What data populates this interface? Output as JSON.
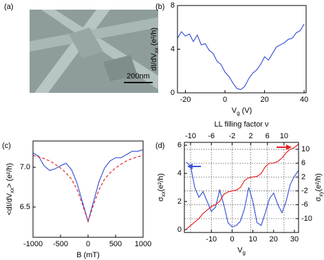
{
  "chart_data": [
    {
      "type": "image",
      "label": "(a)",
      "scale_bar": "200nm"
    },
    {
      "type": "line",
      "label": "(b)",
      "xlabel": [
        "V",
        "g",
        " (V)"
      ],
      "ylabel": [
        "dI/dV",
        "xx",
        " (e²/h)"
      ],
      "xlim": [
        -24,
        41
      ],
      "xticks": [
        -20,
        0,
        20,
        40
      ],
      "ylim": [
        0,
        8
      ],
      "yticks": [
        0,
        4,
        8
      ],
      "grid": false,
      "x": [
        -24,
        -22,
        -20,
        -18,
        -16,
        -14,
        -12,
        -10,
        -8,
        -6,
        -4,
        -2,
        0,
        2,
        4,
        6,
        8,
        10,
        12,
        14,
        16,
        18,
        20,
        22,
        24,
        26,
        28,
        30,
        32,
        34,
        36,
        38,
        40
      ],
      "series": [
        {
          "color": "#3a55d8",
          "values": [
            5.0,
            5.6,
            5.2,
            5.4,
            4.7,
            5.3,
            4.4,
            4.5,
            3.9,
            3.6,
            2.9,
            2.6,
            1.9,
            1.5,
            0.9,
            0.4,
            0.3,
            0.6,
            1.3,
            1.8,
            2.1,
            2.6,
            3.3,
            3.0,
            3.6,
            4.2,
            4.4,
            4.6,
            4.9,
            5.0,
            5.5,
            5.7,
            6.3
          ]
        }
      ]
    },
    {
      "type": "line",
      "label": "(c)",
      "xlabel": [
        "B (mT)"
      ],
      "ylabel": [
        "<dI/dV",
        "xx",
        "> (e²/h)"
      ],
      "xlim": [
        -1000,
        1000
      ],
      "xticks": [
        -1000,
        -500,
        0,
        500,
        1000
      ],
      "ylim": [
        6.12,
        7.33
      ],
      "yticks": [
        6.5,
        {
          "value": 7,
          "label": "7.0"
        }
      ],
      "grid": false,
      "x": [
        -1000,
        -900,
        -800,
        -700,
        -600,
        -500,
        -400,
        -300,
        -200,
        -100,
        0,
        100,
        200,
        300,
        400,
        500,
        600,
        700,
        800,
        900,
        1000
      ],
      "series": [
        {
          "color": "#3a55d8",
          "style": "solid",
          "values": [
            7.18,
            7.14,
            7.02,
            6.96,
            6.98,
            7.02,
            7.05,
            6.97,
            6.8,
            6.56,
            6.32,
            6.57,
            6.82,
            6.99,
            7.08,
            7.12,
            7.12,
            7.16,
            7.2,
            7.2,
            7.22
          ]
        },
        {
          "color": "#e02020",
          "style": "dashed",
          "values": [
            7.15,
            7.13,
            7.11,
            7.08,
            7.04,
            6.99,
            6.93,
            6.85,
            6.72,
            6.53,
            6.32,
            6.53,
            6.72,
            6.85,
            6.93,
            6.99,
            7.04,
            7.08,
            7.11,
            7.13,
            7.15
          ]
        }
      ]
    },
    {
      "type": "line",
      "label": "(d)",
      "xlabel": [
        "V",
        "g"
      ],
      "ylabel": [
        "σ",
        "xx",
        "(e²/h)"
      ],
      "y2label": [
        "σ",
        "xy",
        "(e²/h)"
      ],
      "x2label": [
        "LL filling factor ν"
      ],
      "xlim": [
        -23,
        32
      ],
      "xticks": [
        -10,
        0,
        10,
        20,
        30
      ],
      "x2ticks": [
        {
          "value": -20,
          "label": "-10"
        },
        {
          "value": -10,
          "label": "-6"
        },
        {
          "value": 0,
          "label": "-2"
        },
        {
          "value": 9,
          "label": "2"
        },
        {
          "value": 17,
          "label": "6"
        },
        {
          "value": 25,
          "label": "10"
        }
      ],
      "ylim": [
        -0.2,
        6.2
      ],
      "yticks": [
        0,
        2,
        4,
        6
      ],
      "y2lim": [
        -14,
        12
      ],
      "y2ticks": [
        -10,
        -6,
        -2,
        2,
        6,
        10
      ],
      "grid": true,
      "x": [
        -22,
        -20,
        -18,
        -16,
        -14,
        -12,
        -10,
        -8,
        -6,
        -4,
        -2,
        0,
        2,
        4,
        6,
        8,
        10,
        12,
        14,
        16,
        18,
        20,
        22,
        24,
        26,
        28,
        30,
        32
      ],
      "series": [
        {
          "color": "#3a55d8",
          "values": [
            4.8,
            4.5,
            3.0,
            2.3,
            2.7,
            2.0,
            1.3,
            1.6,
            2.8,
            1.8,
            0.5,
            0.2,
            0.3,
            0.6,
            1.5,
            3.0,
            2.0,
            0.5,
            0.3,
            1.2,
            2.2,
            2.6,
            1.8,
            1.2,
            2.0,
            3.2,
            3.8,
            4.2
          ]
        },
        {
          "color": "#e82020",
          "axis": "y2",
          "values": [
            -13,
            -12,
            -11,
            -10,
            -8.5,
            -7.5,
            -6.5,
            -6,
            -5,
            -3,
            -2.3,
            -2,
            -1.8,
            -1,
            1,
            1.8,
            2,
            2.2,
            3,
            5,
            6,
            6,
            6.5,
            7.5,
            9,
            10,
            10.5,
            11.5
          ]
        }
      ]
    }
  ]
}
